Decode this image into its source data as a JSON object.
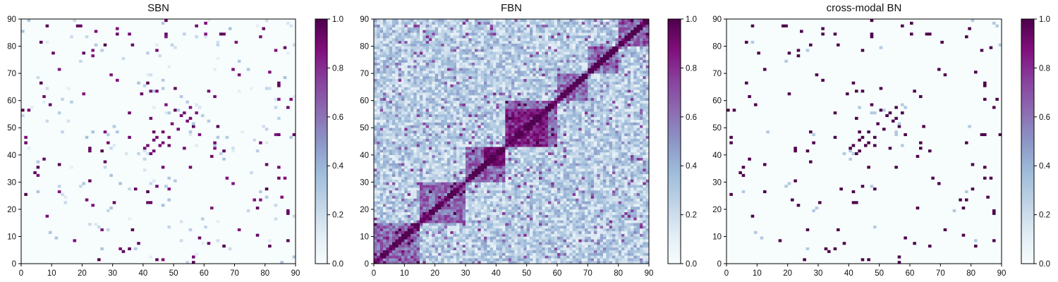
{
  "chart_data": [
    {
      "type": "heatmap",
      "title": "SBN",
      "xlim": [
        0,
        90
      ],
      "ylim": [
        0,
        90
      ],
      "xticks": [
        "0",
        "10",
        "20",
        "30",
        "40",
        "50",
        "60",
        "70",
        "80",
        "90"
      ],
      "yticks": [
        "0",
        "10",
        "20",
        "30",
        "40",
        "50",
        "60",
        "70",
        "80",
        "90"
      ],
      "colormap": "BuPu",
      "colorbar": {
        "range": [
          0.0,
          1.0
        ],
        "ticks": [
          "0.0",
          "0.2",
          "0.4",
          "0.6",
          "0.8",
          "1.0"
        ]
      },
      "grid": false,
      "note_values": "sparse structural connectivity matrix, 90x90 regions, mostly near 0 with a few strong connections"
    },
    {
      "type": "heatmap",
      "title": "FBN",
      "xlim": [
        0,
        90
      ],
      "ylim": [
        0,
        90
      ],
      "xticks": [
        "0",
        "10",
        "20",
        "30",
        "40",
        "50",
        "60",
        "70",
        "80",
        "90"
      ],
      "yticks": [
        "0",
        "10",
        "20",
        "30",
        "40",
        "50",
        "60",
        "70",
        "80",
        "90"
      ],
      "colormap": "BuPu",
      "colorbar": {
        "range": [
          0.0,
          1.0
        ],
        "ticks": [
          "0.0",
          "0.2",
          "0.4",
          "0.6",
          "0.8",
          "1.0"
        ]
      },
      "grid": false
    },
    {
      "type": "heatmap",
      "title": "cross-modal BN",
      "xlim": [
        0,
        90
      ],
      "ylim": [
        0,
        90
      ],
      "xticks": [
        "0",
        "10",
        "20",
        "30",
        "40",
        "50",
        "60",
        "70",
        "80",
        "90"
      ],
      "yticks": [
        "0",
        "10",
        "20",
        "30",
        "40",
        "50",
        "60",
        "70",
        "80",
        "90"
      ],
      "colormap": "BuPu",
      "colorbar": {
        "range": [
          0.0,
          1.0
        ],
        "ticks": [
          "0.0",
          "0.2",
          "0.4",
          "0.6",
          "0.8",
          "1.0"
        ]
      },
      "grid": false
    }
  ]
}
